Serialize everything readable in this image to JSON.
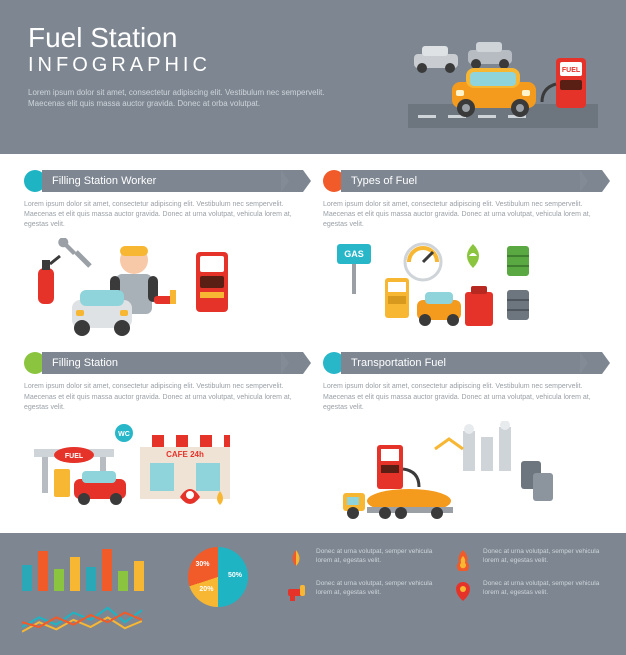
{
  "header": {
    "title": "Fuel Station",
    "subtitle": "INFOGRAPHIC",
    "desc": "Lorem ipsum dolor sit amet, consectetur adipiscing elit. Vestibulum nec sempervelit. Maecenas elit quis massa auctor gravida. Donec at orba volutpat.",
    "bg_color": "#7d8691",
    "title_color": "#ffffff"
  },
  "sections": [
    {
      "title": "Filling Station Worker",
      "dot_color": "#1eb4c4",
      "desc": "Lorem ipsum dolor sit amet, consectetur adipiscing elit. Vestibulum nec sempervelit. Maecenas et elit quis massa auctor gravida. Donec at urna volutpat, vehicula lorem at, egestas velit.",
      "art": "worker"
    },
    {
      "title": "Types of Fuel",
      "dot_color": "#f15a29",
      "desc": "Lorem ipsum dolor sit amet, consectetur adipiscing elit. Vestibulum nec sempervelit. Maecenas et elit quis massa auctor gravida. Donec at urna volutpat, vehicula lorem at, egestas velit.",
      "art": "types"
    },
    {
      "title": "Filling Station",
      "dot_color": "#8bc53f",
      "desc": "Lorem ipsum dolor sit amet, consectetur adipiscing elit. Vestibulum nec sempervelit. Maecenas et elit quis massa auctor gravida. Donec at urna volutpat, vehicula lorem at, egestas velit.",
      "art": "station"
    },
    {
      "title": "Transportation Fuel",
      "dot_color": "#27b7c9",
      "desc": "Lorem ipsum dolor sit amet, consectetur adipiscing elit. Vestibulum nec sempervelit. Maecenas et elit quis massa auctor gravida. Donec at urna volutpat, vehicula lorem at, egestas velit.",
      "art": "transport"
    }
  ],
  "footer": {
    "bg_color": "#7d8691",
    "bar_chart": {
      "type": "bar",
      "values": [
        26,
        40,
        22,
        34,
        24,
        42,
        20,
        30
      ],
      "colors": [
        "#2aa8b8",
        "#f15a29",
        "#8bc53f",
        "#f7b733",
        "#2aa8b8",
        "#f15a29",
        "#8bc53f",
        "#f7b733"
      ],
      "ylim": [
        0,
        44
      ]
    },
    "line_chart": {
      "type": "line",
      "series": [
        {
          "color": "#1eb4c4",
          "points": [
            10,
            18,
            12,
            22,
            16,
            26,
            14,
            24
          ]
        },
        {
          "color": "#f7b733",
          "points": [
            6,
            14,
            8,
            16,
            10,
            18,
            9,
            15
          ]
        },
        {
          "color": "#f15a29",
          "points": [
            14,
            10,
            18,
            12,
            20,
            14,
            22,
            16
          ]
        }
      ],
      "ylim": [
        0,
        30
      ]
    },
    "pie_chart": {
      "type": "pie",
      "slices": [
        {
          "label": "50%",
          "value": 50,
          "color": "#1eb4c4"
        },
        {
          "label": "20%",
          "value": 20,
          "color": "#f7b733"
        },
        {
          "label": "30%",
          "value": 30,
          "color": "#f15a29"
        }
      ]
    },
    "icon_items": [
      {
        "icon": "drop",
        "colors": [
          "#f15a29",
          "#f7b733"
        ],
        "text": "Donec at urna volutpat, semper vehicula lorem at, egestas velit."
      },
      {
        "icon": "flame",
        "colors": [
          "#f7b733",
          "#f15a29"
        ],
        "text": "Donec at urna volutpat, semper vehicula lorem at, egestas velit."
      },
      {
        "icon": "nozzle",
        "colors": [
          "#e6332a",
          "#f7b733"
        ],
        "text": "Donec at urna volutpat, semper vehicula lorem at, egestas velit."
      },
      {
        "icon": "pin",
        "colors": [
          "#e6332a",
          "#f7b733"
        ],
        "text": "Donec at urna volutpat, semper vehicula lorem at, egestas velit."
      }
    ]
  },
  "palette": {
    "gray": "#7d8691",
    "teal": "#1eb4c4",
    "orange": "#f15a29",
    "green": "#8bc53f",
    "yellow": "#f7b733",
    "red": "#e6332a",
    "dark": "#3a3a3a",
    "road": "#6d757e"
  }
}
